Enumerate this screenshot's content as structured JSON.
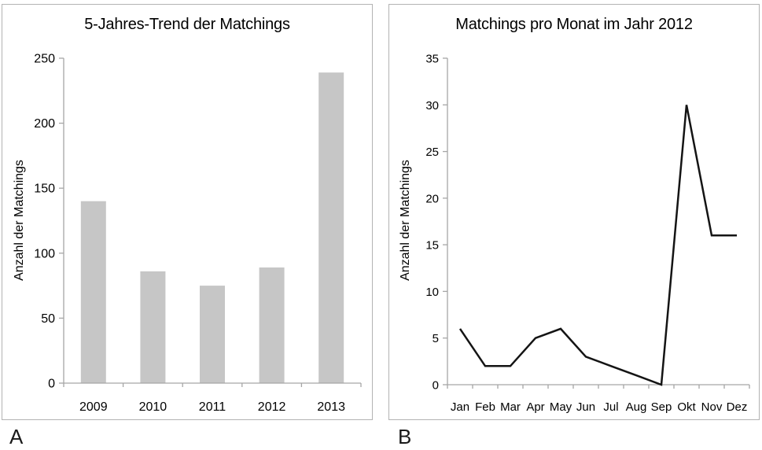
{
  "figure": {
    "panel_a_letter": "A",
    "panel_b_letter": "B"
  },
  "colors": {
    "axis": "#a6a6a6",
    "bar_fill": "#c6c6c6",
    "line": "#141414",
    "panel_border": "#b3b3b3",
    "text": "#000000"
  },
  "chart_data": [
    {
      "panel": "A",
      "type": "bar",
      "title": "5-Jahres-Trend der Matchings",
      "ylabel": "Anzahl der Matchings",
      "xlabel": "",
      "categories": [
        "2009",
        "2010",
        "2011",
        "2012",
        "2013"
      ],
      "values": [
        140,
        86,
        75,
        89,
        239
      ],
      "ylim": [
        0,
        250
      ],
      "ytick_step": 50,
      "yticks": [
        0,
        50,
        100,
        150,
        200,
        250
      ],
      "bar_color": "#c6c6c6",
      "grid": false,
      "legend": "none"
    },
    {
      "panel": "B",
      "type": "line",
      "title": "Matchings pro Monat im Jahr 2012",
      "ylabel": "Anzahl der Matchings",
      "xlabel": "",
      "categories": [
        "Jan",
        "Feb",
        "Mar",
        "Apr",
        "May",
        "Jun",
        "Jul",
        "Aug",
        "Sep",
        "Okt",
        "Nov",
        "Dez"
      ],
      "values": [
        6,
        2,
        2,
        5,
        6,
        3,
        2,
        1,
        0,
        30,
        16,
        16
      ],
      "ylim": [
        0,
        35
      ],
      "ytick_step": 5,
      "yticks": [
        0,
        5,
        10,
        15,
        20,
        25,
        30,
        35
      ],
      "line_color": "#141414",
      "grid": false,
      "legend": "none"
    }
  ]
}
